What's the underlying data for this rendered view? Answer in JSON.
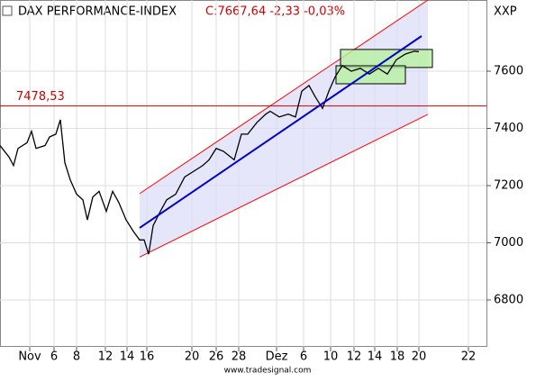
{
  "chart_data": {
    "type": "line",
    "title": "DAX PERFORMANCE-INDEX",
    "quote": "C:7667,64 -2,33 -0,03%",
    "symbol": "XXP",
    "footer": "www.tradesignal.com",
    "series": [
      {
        "name": "DAX",
        "color": "#000000",
        "x": [
          0,
          10,
          15,
          20,
          30,
          35,
          40,
          50,
          55,
          62,
          67,
          72,
          78,
          85,
          92,
          97,
          103,
          110,
          118,
          125,
          132,
          140,
          148,
          155,
          160,
          165,
          170,
          178,
          185,
          195,
          205,
          215,
          225,
          232,
          240,
          248,
          260,
          268,
          275,
          285,
          295,
          300,
          310,
          320,
          328,
          335,
          343,
          350,
          358,
          365,
          372,
          380,
          390,
          400,
          410,
          420,
          430,
          440,
          450,
          460,
          465
        ],
        "values": [
          7340,
          7300,
          7270,
          7330,
          7350,
          7390,
          7330,
          7340,
          7370,
          7380,
          7430,
          7280,
          7220,
          7170,
          7150,
          7080,
          7160,
          7180,
          7110,
          7180,
          7140,
          7080,
          7040,
          7010,
          7010,
          6960,
          7060,
          7110,
          7150,
          7170,
          7230,
          7250,
          7270,
          7290,
          7330,
          7320,
          7290,
          7380,
          7380,
          7420,
          7450,
          7460,
          7440,
          7450,
          7440,
          7530,
          7550,
          7510,
          7470,
          7530,
          7580,
          7620,
          7600,
          7610,
          7590,
          7610,
          7590,
          7640,
          7660,
          7670,
          7668
        ]
      }
    ],
    "regression": {
      "color": "#0000cc",
      "x": [
        155,
        468
      ],
      "values": [
        7052,
        7723
      ]
    },
    "channel": {
      "color": "#ff0000",
      "fill": "#dcdcf8",
      "x": [
        155,
        475
      ],
      "upper": [
        7172,
        7849
      ],
      "lower": [
        6950,
        7449
      ]
    },
    "boxes": [
      {
        "color": "#b8f0a0",
        "x": [
          378,
          480
        ],
        "values": [
          7676,
          7613
        ]
      },
      {
        "color": "#b8f0a0",
        "x": [
          373,
          450
        ],
        "values": [
          7619,
          7556
        ]
      }
    ],
    "hline": {
      "value": 7478.53,
      "label": "7478,53",
      "color": "#d00000"
    },
    "xlim": [
      0,
      540
    ],
    "ylim": [
      6636,
      7849
    ],
    "xticks": [
      {
        "value": 33,
        "label": "Nov"
      },
      {
        "value": 60,
        "label": "6"
      },
      {
        "value": 85,
        "label": "8"
      },
      {
        "value": 117,
        "label": "12"
      },
      {
        "value": 141,
        "label": "14"
      },
      {
        "value": 163,
        "label": "16"
      },
      {
        "value": 213,
        "label": "20"
      },
      {
        "value": 240,
        "label": "26"
      },
      {
        "value": 265,
        "label": "28"
      },
      {
        "value": 307,
        "label": "Dez"
      },
      {
        "value": 337,
        "label": "6"
      },
      {
        "value": 367,
        "label": "10"
      },
      {
        "value": 393,
        "label": "12"
      },
      {
        "value": 416,
        "label": "14"
      },
      {
        "value": 441,
        "label": "18"
      },
      {
        "value": 465,
        "label": "20"
      },
      {
        "value": 520,
        "label": "22"
      }
    ],
    "yticks": [
      6800,
      7000,
      7200,
      7400,
      7600
    ]
  }
}
